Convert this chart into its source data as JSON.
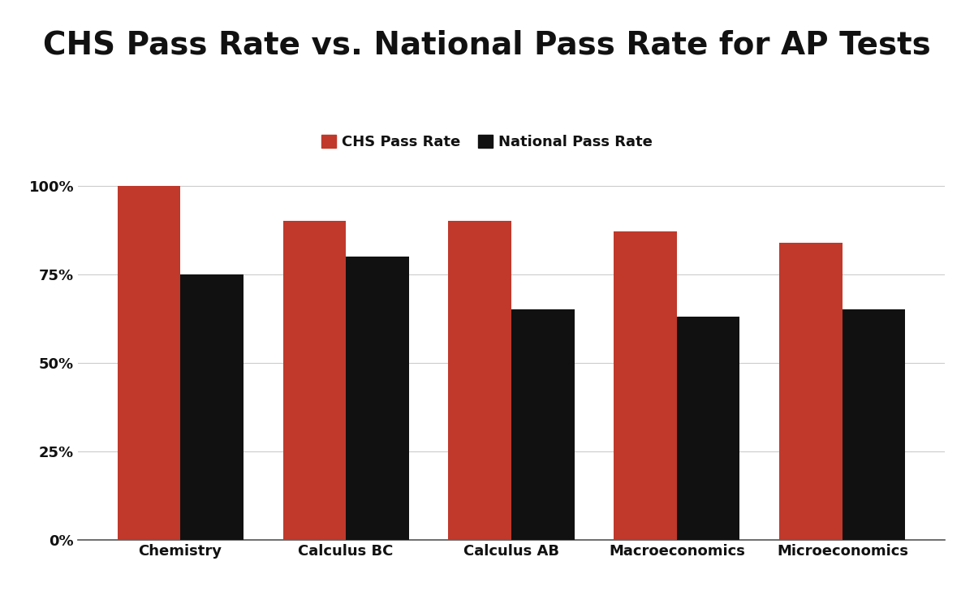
{
  "title": "CHS Pass Rate vs. National Pass Rate for AP Tests",
  "categories": [
    "Chemistry",
    "Calculus BC",
    "Calculus AB",
    "Macroeconomics",
    "Microeconomics"
  ],
  "chs_values": [
    1.0,
    0.9,
    0.9,
    0.87,
    0.84
  ],
  "national_values": [
    0.75,
    0.8,
    0.65,
    0.63,
    0.65
  ],
  "chs_color": "#C0392B",
  "national_color": "#111111",
  "background_color": "#FFFFFF",
  "title_fontsize": 28,
  "legend_fontsize": 13,
  "tick_fontsize": 13,
  "xlabel_fontsize": 13,
  "bar_width": 0.38,
  "ylim": [
    0,
    1.05
  ],
  "yticks": [
    0,
    0.25,
    0.5,
    0.75,
    1.0
  ],
  "ytick_labels": [
    "0%",
    "25%",
    "50%",
    "75%",
    "100%"
  ],
  "legend_label_chs": "CHS Pass Rate",
  "legend_label_national": "National Pass Rate",
  "grid_color": "#CCCCCC",
  "grid_linewidth": 0.8
}
